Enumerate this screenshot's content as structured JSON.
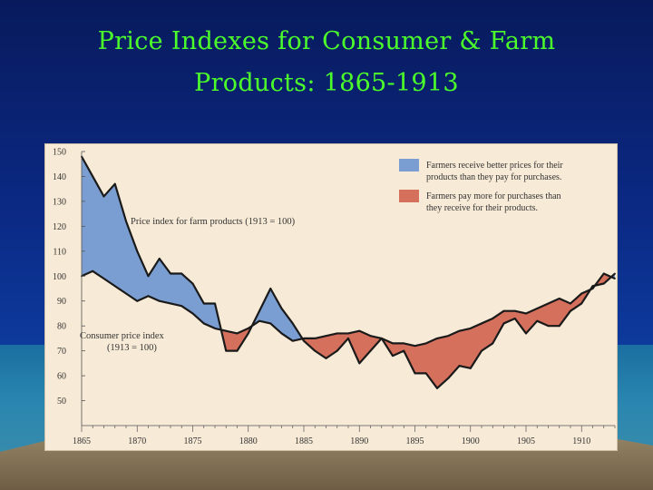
{
  "slide": {
    "title_line1": "Price Indexes for Consumer & Farm",
    "title_line2": "Products:  1865-1913"
  },
  "chart_data": {
    "type": "area",
    "x": [
      1865,
      1866,
      1867,
      1868,
      1869,
      1870,
      1871,
      1872,
      1873,
      1874,
      1875,
      1876,
      1877,
      1878,
      1879,
      1880,
      1881,
      1882,
      1883,
      1884,
      1885,
      1886,
      1887,
      1888,
      1889,
      1890,
      1891,
      1892,
      1893,
      1894,
      1895,
      1896,
      1897,
      1898,
      1899,
      1900,
      1901,
      1902,
      1903,
      1904,
      1905,
      1906,
      1907,
      1908,
      1909,
      1910,
      1911,
      1912,
      1913
    ],
    "series": [
      {
        "name": "Price index for farm products (1913 = 100)",
        "values": [
          148,
          140,
          132,
          137,
          122,
          110,
          100,
          107,
          101,
          101,
          97,
          89,
          89,
          70,
          70,
          77,
          86,
          95,
          87,
          81,
          74,
          70,
          67,
          70,
          75,
          65,
          70,
          75,
          68,
          70,
          61,
          61,
          55,
          59,
          64,
          63,
          70,
          73,
          81,
          83,
          77,
          82,
          80,
          80,
          86,
          89,
          96,
          97,
          101
        ]
      },
      {
        "name": "Consumer price index (1913 = 100)",
        "values": [
          100,
          102,
          99,
          96,
          93,
          90,
          92,
          90,
          89,
          88,
          85,
          81,
          79,
          78,
          77,
          79,
          82,
          81,
          77,
          74,
          75,
          75,
          76,
          77,
          77,
          78,
          76,
          75,
          73,
          73,
          72,
          73,
          75,
          76,
          78,
          79,
          81,
          83,
          86,
          86,
          85,
          87,
          89,
          91,
          89,
          93,
          95,
          101,
          99
        ]
      }
    ],
    "ylim": [
      40,
      150
    ],
    "xlim": [
      1865,
      1913
    ],
    "y_ticks": [
      50,
      60,
      70,
      80,
      90,
      100,
      110,
      120,
      130,
      140,
      150
    ],
    "x_ticks": [
      1865,
      1870,
      1875,
      1880,
      1885,
      1890,
      1895,
      1900,
      1905,
      1910
    ],
    "labels": {
      "farm": "Price index for farm products (1913 = 100)",
      "consumer_line1": "Consumer price index",
      "consumer_line2": "(1913 = 100)"
    },
    "legend": {
      "placement": "top-right",
      "items": [
        {
          "color": "#7b9ed2",
          "line1": "Farmers receive better prices for their",
          "line2": "products than they pay for purchases."
        },
        {
          "color": "#d4705c",
          "line1": "Farmers pay more for purchases than",
          "line2": "they receive for their products."
        }
      ]
    },
    "colors": {
      "blue_fill": "#7b9ed2",
      "red_fill": "#d4705c",
      "line": "#1a1a1a",
      "panel_bg": "#f7ead6"
    },
    "grid": false
  }
}
